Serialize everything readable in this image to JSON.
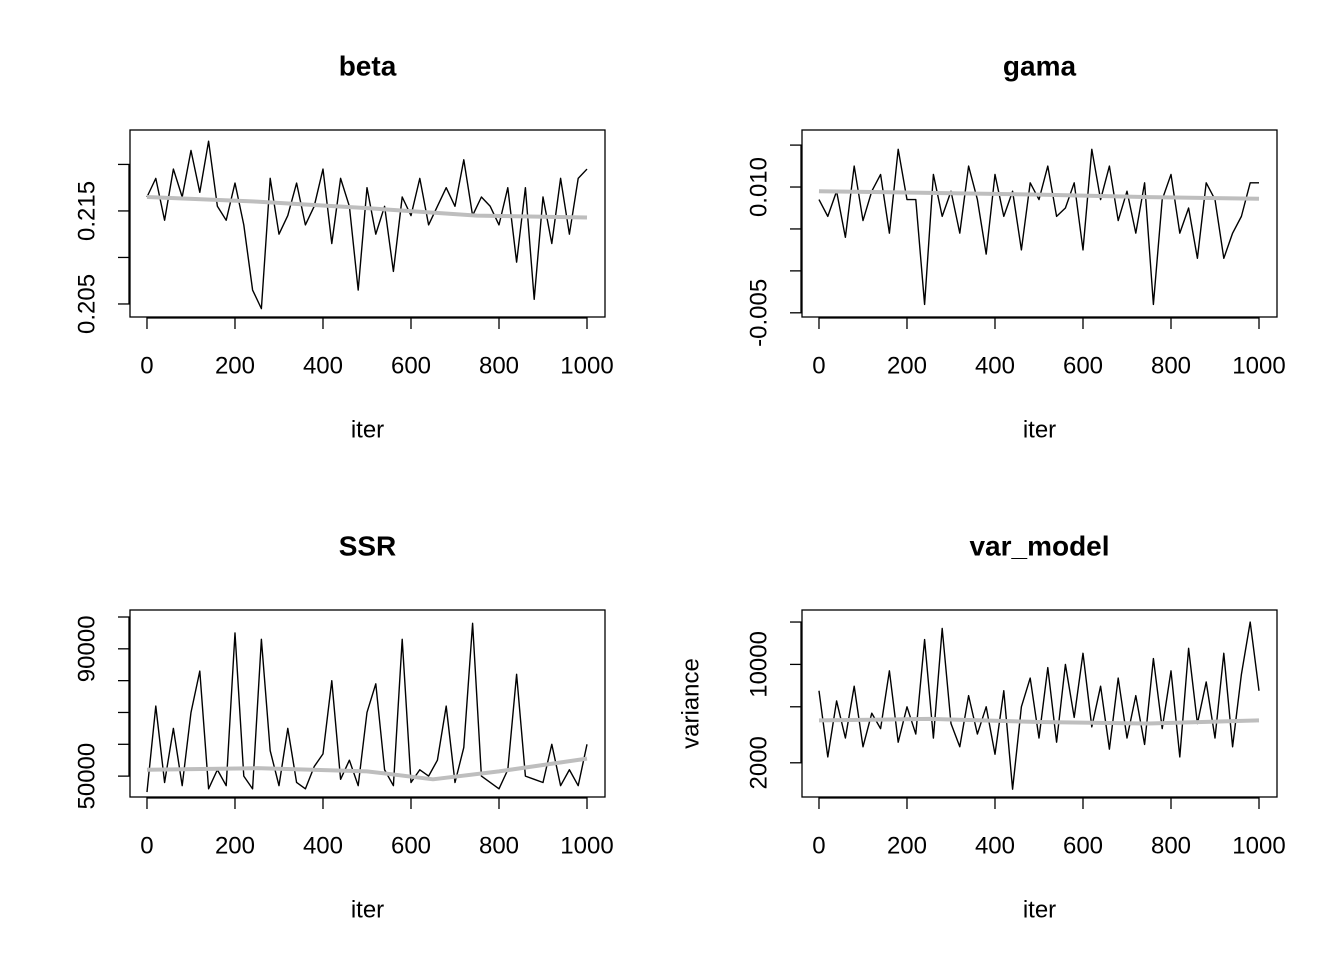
{
  "chart_data": [
    {
      "type": "line",
      "title": "beta",
      "xlabel": "iter",
      "x": [
        0,
        20,
        40,
        60,
        80,
        100,
        120,
        140,
        160,
        180,
        200,
        220,
        240,
        260,
        280,
        300,
        320,
        340,
        360,
        380,
        400,
        420,
        440,
        460,
        480,
        500,
        520,
        540,
        560,
        580,
        600,
        620,
        640,
        660,
        680,
        700,
        720,
        740,
        760,
        780,
        800,
        820,
        840,
        860,
        880,
        900,
        920,
        940,
        960,
        980,
        1000
      ],
      "xlim": [
        -38.6,
        1040.9
      ],
      "xticks": [
        0,
        200,
        400,
        600,
        800,
        1000
      ],
      "ylim": [
        0.2036,
        0.2237
      ],
      "yticks": [
        0.205,
        0.215
      ],
      "minor_yticks": [
        0.21,
        0.22
      ],
      "series": [
        {
          "color": "#000000",
          "values": [
            0.2165,
            0.2185,
            0.214,
            0.2195,
            0.2165,
            0.2215,
            0.217,
            0.2225,
            0.2155,
            0.214,
            0.218,
            0.2135,
            0.2065,
            0.2045,
            0.2185,
            0.2125,
            0.2145,
            0.218,
            0.2135,
            0.2155,
            0.2195,
            0.2115,
            0.2185,
            0.2155,
            0.2065,
            0.2175,
            0.2125,
            0.2155,
            0.2085,
            0.2165,
            0.2145,
            0.2185,
            0.2135,
            0.2155,
            0.2175,
            0.2155,
            0.2205,
            0.2145,
            0.2165,
            0.2155,
            0.2135,
            0.2175,
            0.2095,
            0.2175,
            0.2055,
            0.2165,
            0.2115,
            0.2185,
            0.2125,
            0.2185,
            0.2195
          ]
        },
        {
          "color": "#bebebe",
          "x": [
            0,
            250,
            500,
            750,
            1000
          ],
          "values": [
            0.2165,
            0.216,
            0.2153,
            0.2145,
            0.2143
          ]
        }
      ]
    },
    {
      "type": "line",
      "title": "gama",
      "xlabel": "iter",
      "x": [
        0,
        20,
        40,
        60,
        80,
        100,
        120,
        140,
        160,
        180,
        200,
        220,
        240,
        260,
        280,
        300,
        320,
        340,
        360,
        380,
        400,
        420,
        440,
        460,
        480,
        500,
        520,
        540,
        560,
        580,
        600,
        620,
        640,
        660,
        680,
        700,
        720,
        740,
        760,
        780,
        800,
        820,
        840,
        860,
        880,
        900,
        920,
        940,
        960,
        980,
        1000
      ],
      "xlim": [
        -38.6,
        1040.9
      ],
      "xticks": [
        0,
        200,
        400,
        600,
        800,
        1000
      ],
      "ylim": [
        -0.0055,
        0.0168
      ],
      "yticks": [
        -0.005,
        {
          "value": 0.01,
          "label": "0.010"
        }
      ],
      "minor_yticks": [
        0,
        0.005,
        0.015
      ],
      "series": [
        {
          "color": "#000000",
          "values": [
            0.0085,
            0.0065,
            0.0095,
            0.004,
            0.0125,
            0.006,
            0.0095,
            0.0115,
            0.0045,
            0.0145,
            0.0085,
            0.0085,
            -0.004,
            0.0115,
            0.0065,
            0.0095,
            0.0045,
            0.0125,
            0.0085,
            0.002,
            0.0115,
            0.0065,
            0.0095,
            0.0025,
            0.0105,
            0.0085,
            0.0125,
            0.0065,
            0.0075,
            0.0105,
            0.0025,
            0.0145,
            0.0085,
            0.0125,
            0.006,
            0.0095,
            0.0045,
            0.0105,
            -0.004,
            0.0085,
            0.0115,
            0.0045,
            0.0075,
            0.0015,
            0.0105,
            0.0085,
            0.0015,
            0.0045,
            0.0065,
            0.0105,
            0.0105
          ]
        },
        {
          "color": "#bebebe",
          "x": [
            0,
            250,
            500,
            750,
            1000
          ],
          "values": [
            0.0095,
            0.0093,
            0.0091,
            0.0088,
            0.0086
          ]
        }
      ]
    },
    {
      "type": "line",
      "title": "SSR",
      "xlabel": "iter",
      "x": [
        0,
        20,
        40,
        60,
        80,
        100,
        120,
        140,
        160,
        180,
        200,
        220,
        240,
        260,
        280,
        300,
        320,
        340,
        360,
        380,
        400,
        420,
        440,
        460,
        480,
        500,
        520,
        540,
        560,
        580,
        600,
        620,
        640,
        660,
        680,
        700,
        720,
        740,
        760,
        780,
        800,
        820,
        840,
        860,
        880,
        900,
        920,
        940,
        960,
        980,
        1000
      ],
      "xlim": [
        -38.6,
        1040.9
      ],
      "xticks": [
        0,
        200,
        400,
        600,
        800,
        1000
      ],
      "ylim": [
        43440,
        102200
      ],
      "yticks": [
        50000,
        90000
      ],
      "minor_yticks": [
        60000,
        70000,
        80000,
        100000
      ],
      "series": [
        {
          "color": "#000000",
          "values": [
            45000,
            72000,
            48000,
            65000,
            47000,
            70000,
            83000,
            46000,
            52000,
            47000,
            95000,
            50000,
            46000,
            93000,
            58000,
            47000,
            65000,
            48000,
            46000,
            53000,
            57000,
            80000,
            49000,
            55000,
            47000,
            70000,
            79000,
            52000,
            47000,
            93000,
            48000,
            52000,
            50000,
            55000,
            72000,
            48000,
            59000,
            98000,
            50000,
            48000,
            46000,
            52000,
            82000,
            50000,
            49000,
            48000,
            60000,
            47000,
            52000,
            47000,
            60000
          ]
        },
        {
          "color": "#bebebe",
          "x": [
            0,
            250,
            500,
            650,
            800,
            1000
          ],
          "values": [
            52000,
            52500,
            51500,
            49000,
            51500,
            55500
          ]
        }
      ]
    },
    {
      "type": "line",
      "title": "var_model",
      "xlabel": "iter",
      "ylabel": "variance",
      "yscale": "log",
      "x": [
        0,
        20,
        40,
        60,
        80,
        100,
        120,
        140,
        160,
        180,
        200,
        220,
        240,
        260,
        280,
        300,
        320,
        340,
        360,
        380,
        400,
        420,
        440,
        460,
        480,
        500,
        520,
        540,
        560,
        580,
        600,
        620,
        640,
        660,
        680,
        700,
        720,
        740,
        760,
        780,
        800,
        820,
        840,
        860,
        880,
        900,
        920,
        940,
        960,
        980,
        1000
      ],
      "xlim": [
        -38.6,
        1040.9
      ],
      "xticks": [
        0,
        200,
        400,
        600,
        800,
        1000
      ],
      "ylim": [
        1143,
        24350
      ],
      "yticks": [
        2000,
        10000
      ],
      "minor_yticks": [
        5000,
        20000
      ],
      "series": [
        {
          "color": "#000000",
          "values": [
            6500,
            2200,
            5500,
            3000,
            7000,
            2600,
            4500,
            3500,
            9000,
            2800,
            5000,
            3200,
            15000,
            3000,
            18000,
            3800,
            2600,
            6000,
            3200,
            5000,
            2300,
            6500,
            1300,
            5000,
            8000,
            3000,
            9500,
            2800,
            10000,
            4200,
            12000,
            3600,
            7000,
            2500,
            8000,
            3000,
            6000,
            2700,
            11000,
            3500,
            9000,
            2200,
            13000,
            3800,
            7500,
            3000,
            12000,
            2600,
            8500,
            20000,
            6500
          ]
        },
        {
          "color": "#bebebe",
          "x": [
            0,
            250,
            500,
            750,
            1000
          ],
          "values": [
            4000,
            4100,
            3900,
            3800,
            4000
          ]
        }
      ]
    }
  ]
}
